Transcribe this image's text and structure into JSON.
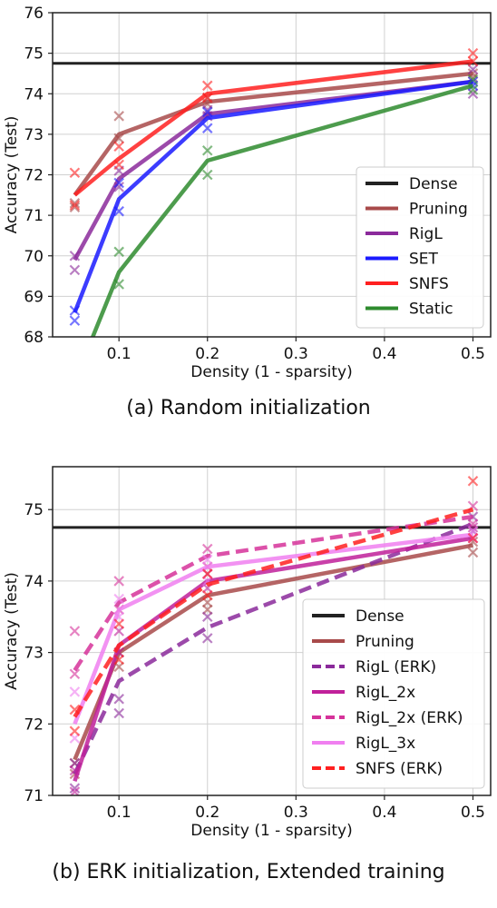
{
  "figures": [
    {
      "caption": "(a) Random initialization",
      "chart_data": {
        "type": "line",
        "xlabel": "Density (1 - sparsity)",
        "ylabel": "Accuracy (Test)",
        "xlim": [
          0.025,
          0.52
        ],
        "ylim": [
          68,
          76
        ],
        "xticks": [
          0.1,
          0.2,
          0.3,
          0.4,
          0.5
        ],
        "yticks": [
          68,
          69,
          70,
          71,
          72,
          73,
          74,
          75,
          76
        ],
        "grid": true,
        "legend_position": "lower right",
        "hline": {
          "name": "Dense",
          "y": 74.75,
          "color": "#222222"
        },
        "x": [
          0.05,
          0.1,
          0.2,
          0.5
        ],
        "series": [
          {
            "name": "Pruning",
            "color": "#a84a4a",
            "style": "solid",
            "values": [
              71.5,
              73.0,
              73.8,
              74.5
            ],
            "samples": [
              [
                71.3,
                71.2
              ],
              [
                73.45,
                72.9
              ],
              [
                73.75,
                73.9
              ],
              [
                74.5,
                74.4
              ]
            ]
          },
          {
            "name": "RigL",
            "color": "#8b2a9b",
            "style": "solid",
            "values": [
              69.9,
              71.9,
              73.5,
              74.3
            ],
            "samples": [
              [
                70.0,
                69.65
              ],
              [
                72.1,
                71.7
              ],
              [
                73.45,
                73.6
              ],
              [
                74.0,
                74.6
              ]
            ]
          },
          {
            "name": "SET",
            "color": "#1a1aff",
            "style": "solid",
            "values": [
              68.6,
              71.4,
              73.4,
              74.3
            ],
            "samples": [
              [
                68.65,
                68.4
              ],
              [
                71.8,
                71.1
              ],
              [
                73.15,
                73.55
              ],
              [
                74.3,
                74.2
              ]
            ]
          },
          {
            "name": "SNFS",
            "color": "#ff2020",
            "style": "solid",
            "values": [
              71.5,
              72.4,
              74.0,
              74.8
            ],
            "samples": [
              [
                72.05,
                71.25
              ],
              [
                72.7,
                72.25
              ],
              [
                74.2,
                73.9
              ],
              [
                75.0,
                74.8
              ]
            ]
          },
          {
            "name": "Static",
            "color": "#2e8b2e",
            "style": "solid",
            "values": [
              66.9,
              69.6,
              72.35,
              74.2
            ],
            "samples": [
              [
                null,
                null
              ],
              [
                70.1,
                69.3
              ],
              [
                72.6,
                72.0
              ],
              [
                74.35,
                74.1
              ]
            ]
          }
        ]
      }
    },
    {
      "caption": "(b) ERK initialization,  Extended training",
      "chart_data": {
        "type": "line",
        "xlabel": "Density (1 - sparsity)",
        "ylabel": "Accuracy (Test)",
        "xlim": [
          0.025,
          0.52
        ],
        "ylim": [
          71,
          75.6
        ],
        "xticks": [
          0.1,
          0.2,
          0.3,
          0.4,
          0.5
        ],
        "yticks": [
          71,
          72,
          73,
          74,
          75
        ],
        "grid": true,
        "legend_position": "lower right",
        "hline": {
          "name": "Dense",
          "y": 74.75,
          "color": "#222222"
        },
        "x": [
          0.05,
          0.1,
          0.2,
          0.5
        ],
        "series": [
          {
            "name": "Pruning",
            "color": "#a84a4a",
            "style": "solid",
            "values": [
              71.5,
              73.0,
              73.8,
              74.5
            ],
            "samples": [
              [
                71.45,
                71.3
              ],
              [
                73.0,
                72.8
              ],
              [
                73.6,
                73.7
              ],
              [
                74.4,
                74.55
              ]
            ]
          },
          {
            "name": "RigL (ERK)",
            "color": "#8b2a9b",
            "style": "dashed",
            "values": [
              71.3,
              72.6,
              73.35,
              74.8
            ],
            "samples": [
              [
                71.1,
                71.45
              ],
              [
                72.35,
                72.15
              ],
              [
                73.2,
                73.5
              ],
              [
                74.7,
                74.9
              ]
            ]
          },
          {
            "name": "RigL_2x",
            "color": "#c0209a",
            "style": "solid",
            "values": [
              71.2,
              73.1,
              74.0,
              74.6
            ],
            "samples": [
              [
                71.05,
                71.35
              ],
              [
                73.0,
                73.3
              ],
              [
                74.1,
                73.9
              ],
              [
                74.6,
                74.75
              ]
            ]
          },
          {
            "name": "RigL_2x (ERK)",
            "color": "#d6339a",
            "style": "dashed",
            "values": [
              72.75,
              73.7,
              74.35,
              74.9
            ],
            "samples": [
              [
                73.3,
                72.7
              ],
              [
                74.0,
                73.6
              ],
              [
                74.45,
                74.2
              ],
              [
                75.05,
                74.8
              ]
            ]
          },
          {
            "name": "RigL_3x",
            "color": "#f07ff0",
            "style": "solid",
            "values": [
              72.0,
              73.6,
              74.2,
              74.65
            ],
            "samples": [
              [
                72.45,
                71.8
              ],
              [
                73.75,
                73.5
              ],
              [
                74.3,
                74.0
              ],
              [
                74.7,
                74.6
              ]
            ]
          },
          {
            "name": "SNFS (ERK)",
            "color": "#ff2020",
            "style": "dashed",
            "values": [
              72.1,
              73.1,
              73.95,
              75.0
            ],
            "samples": [
              [
                72.2,
                71.9
              ],
              [
                73.4,
                72.9
              ],
              [
                74.1,
                73.8
              ],
              [
                75.4,
                74.6
              ]
            ]
          }
        ]
      }
    }
  ]
}
